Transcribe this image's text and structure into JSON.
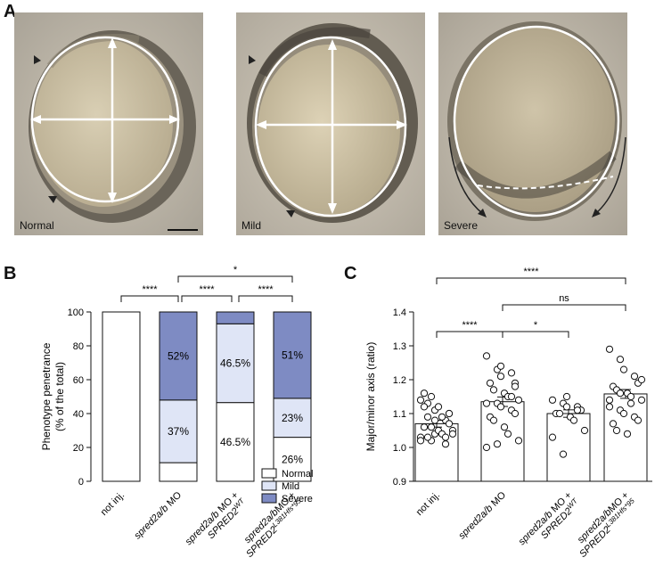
{
  "panelA": {
    "letter": "A",
    "images": [
      {
        "label": "Normal"
      },
      {
        "label": "Mild"
      },
      {
        "label": "Severe"
      }
    ]
  },
  "panelB": {
    "letter": "B",
    "legend": [
      "Normal",
      "Mild",
      "Severe"
    ],
    "significance": [
      "****",
      "****",
      "****",
      "*"
    ]
  },
  "panelC": {
    "letter": "C",
    "significance": [
      "****",
      "*",
      "ns",
      "****"
    ]
  },
  "colors": {
    "normal": "#ffffff",
    "mild": "#dfe5f6",
    "severe": "#7e8bc3",
    "point": "#ffffff"
  },
  "chart_data": [
    {
      "type": "bar",
      "stacked": true,
      "ylabel": "Phenotype penetrance\n(% of the total)",
      "ylim": [
        0,
        100
      ],
      "yticks": [
        0,
        20,
        40,
        60,
        80,
        100
      ],
      "categories": [
        "not inj.",
        "spred2a/b MO",
        "spred2a/b MO + SPRED2WT",
        "spred2a/bMO + SPRED2L381Hfs*95"
      ],
      "category_labels": [
        {
          "lines": [
            {
              "segments": [
                {
                  "text": "not inj.",
                  "italic": false
                }
              ]
            }
          ]
        },
        {
          "lines": [
            {
              "segments": [
                {
                  "text": "spred2a/b",
                  "italic": true
                },
                {
                  "text": " MO",
                  "italic": false
                }
              ]
            }
          ]
        },
        {
          "lines": [
            {
              "segments": [
                {
                  "text": "spred2a/b",
                  "italic": true
                },
                {
                  "text": " MO +",
                  "italic": false
                }
              ]
            },
            {
              "segments": [
                {
                  "text": "SPRED2",
                  "italic": true
                },
                {
                  "text": "WT",
                  "italic": true,
                  "sup": true
                }
              ]
            }
          ]
        },
        {
          "lines": [
            {
              "segments": [
                {
                  "text": "spred2a/b",
                  "italic": true
                },
                {
                  "text": "MO +",
                  "italic": false
                }
              ]
            },
            {
              "segments": [
                {
                  "text": "SPRED2",
                  "italic": true
                },
                {
                  "text": "L381Hfs*95",
                  "italic": true,
                  "sup": true
                }
              ]
            }
          ]
        }
      ],
      "series": [
        {
          "name": "Normal",
          "values": [
            100,
            11,
            46.5,
            26
          ],
          "labels": [
            "",
            "",
            "46.5%",
            "26%"
          ]
        },
        {
          "name": "Mild",
          "values": [
            0,
            37,
            46.5,
            23
          ],
          "labels": [
            "",
            "37%",
            "46.5%",
            "23%"
          ]
        },
        {
          "name": "Severe",
          "values": [
            0,
            52,
            7,
            51
          ],
          "labels": [
            "",
            "52%",
            "",
            "51%"
          ]
        }
      ],
      "legend_position": "bottom-right"
    },
    {
      "type": "bar",
      "ylabel": "Major/minor axis (ratio)",
      "ylim": [
        0.9,
        1.4
      ],
      "yticks": [
        0.9,
        1.0,
        1.1,
        1.2,
        1.3,
        1.4
      ],
      "categories": [
        "not inj.",
        "spred2a/b MO",
        "spred2a/b MO + SPRED2WT",
        "spred2a/bMO + SPRED2L381Hfs*95"
      ],
      "values": [
        1.07,
        1.135,
        1.1,
        1.158
      ],
      "errors": [
        0.01,
        0.014,
        0.011,
        0.013
      ],
      "points": [
        [
          1.03,
          1.02,
          1.11,
          1.08,
          1.1,
          1.06,
          1.13,
          1.12,
          1.09,
          1.05,
          1.02,
          1.06,
          1.04,
          1.01,
          1.07,
          1.12,
          1.09,
          1.05,
          1.04,
          1.04,
          1.14,
          1.15,
          1.08,
          1.03,
          1.1,
          1.16,
          1.03
        ],
        [
          1.27,
          1.23,
          1.24,
          1.22,
          1.19,
          1.19,
          1.17,
          1.16,
          1.15,
          1.14,
          1.13,
          1.13,
          1.12,
          1.11,
          1.1,
          1.09,
          1.08,
          1.06,
          1.04,
          1.02,
          1.0,
          1.01,
          1.21,
          1.15,
          1.18
        ],
        [
          1.14,
          1.13,
          1.15,
          1.12,
          1.11,
          1.1,
          1.1,
          1.09,
          1.08,
          1.05,
          1.03,
          0.98,
          1.12,
          1.11
        ],
        [
          1.29,
          1.26,
          1.23,
          1.21,
          1.19,
          1.18,
          1.17,
          1.16,
          1.15,
          1.14,
          1.12,
          1.11,
          1.1,
          1.09,
          1.08,
          1.07,
          1.05,
          1.04,
          1.13,
          1.2,
          1.14,
          1.16
        ]
      ],
      "category_labels": [
        {
          "lines": [
            {
              "segments": [
                {
                  "text": "not inj.",
                  "italic": false
                }
              ]
            }
          ]
        },
        {
          "lines": [
            {
              "segments": [
                {
                  "text": "spred2a/b",
                  "italic": true
                },
                {
                  "text": " MO",
                  "italic": false
                }
              ]
            }
          ]
        },
        {
          "lines": [
            {
              "segments": [
                {
                  "text": "spred2a/b",
                  "italic": true
                },
                {
                  "text": " MO +",
                  "italic": false
                }
              ]
            },
            {
              "segments": [
                {
                  "text": "SPRED2",
                  "italic": true
                },
                {
                  "text": "WT",
                  "italic": true,
                  "sup": true
                }
              ]
            }
          ]
        },
        {
          "lines": [
            {
              "segments": [
                {
                  "text": "spred2a/b",
                  "italic": true
                },
                {
                  "text": "MO +",
                  "italic": false
                }
              ]
            },
            {
              "segments": [
                {
                  "text": "SPRED2",
                  "italic": true
                },
                {
                  "text": "L381Hfs*95",
                  "italic": true,
                  "sup": true
                }
              ]
            }
          ]
        }
      ]
    }
  ]
}
